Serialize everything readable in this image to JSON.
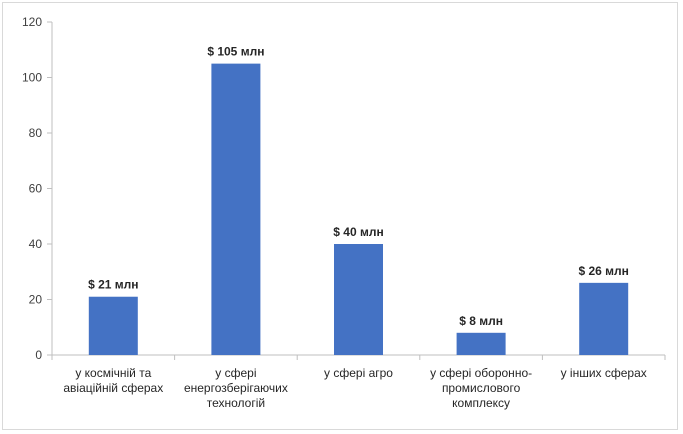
{
  "chart_data": {
    "type": "bar",
    "categories": [
      [
        "у космічній та",
        "авіаційній сферах"
      ],
      [
        "у сфері",
        "енергозберігаючих",
        "технологій"
      ],
      [
        "у сфері агро"
      ],
      [
        "у сфері оборонно-",
        "промислового",
        "комплексу"
      ],
      [
        "у інших сферах"
      ]
    ],
    "values": [
      21,
      105,
      40,
      8,
      26
    ],
    "data_labels": [
      "$ 21 млн",
      "$ 105 млн",
      "$ 40 млн",
      "$ 8 млн",
      "$ 26 млн"
    ],
    "y_ticks": [
      0,
      20,
      40,
      60,
      80,
      100,
      120
    ],
    "ylim": [
      0,
      120
    ],
    "bar_color": "#4472c4",
    "grid": false,
    "legend": "none"
  }
}
